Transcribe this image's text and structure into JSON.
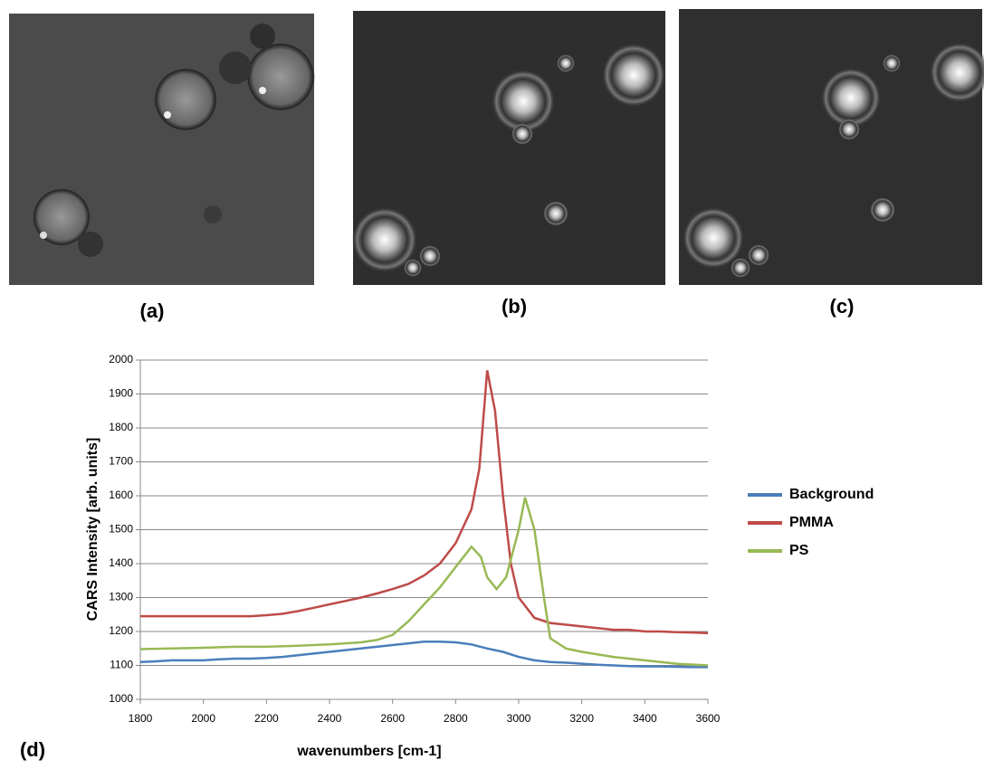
{
  "panels": {
    "a": "(a)",
    "b": "(b)",
    "c": "(c)",
    "d": "(d)"
  },
  "chart_data": {
    "type": "line",
    "ylabel": "CARS Intensity [arb. units]",
    "xlabel": "wavenumbers [cm-1]",
    "xlim": [
      1800,
      3600
    ],
    "xticks": [
      1800,
      2000,
      2200,
      2400,
      2600,
      2800,
      3000,
      3200,
      3400,
      3600
    ],
    "ylim": [
      1000,
      2000
    ],
    "yticks": [
      1000,
      1100,
      1200,
      1300,
      1400,
      1500,
      1600,
      1700,
      1800,
      1900,
      2000
    ],
    "grid": true,
    "legend": "right",
    "series": [
      {
        "name": "Background",
        "color": "#4a7ebb",
        "x": [
          1800,
          1850,
          1900,
          1950,
          2000,
          2050,
          2100,
          2150,
          2200,
          2250,
          2300,
          2350,
          2400,
          2450,
          2500,
          2550,
          2600,
          2650,
          2700,
          2750,
          2800,
          2850,
          2900,
          2950,
          3000,
          3050,
          3100,
          3150,
          3200,
          3250,
          3300,
          3350,
          3400,
          3450,
          3500,
          3550,
          3600
        ],
        "values": [
          1110,
          1112,
          1115,
          1115,
          1115,
          1118,
          1120,
          1120,
          1122,
          1125,
          1130,
          1135,
          1140,
          1145,
          1150,
          1155,
          1160,
          1165,
          1170,
          1170,
          1168,
          1162,
          1150,
          1140,
          1125,
          1115,
          1110,
          1108,
          1105,
          1102,
          1100,
          1098,
          1097,
          1097,
          1096,
          1095,
          1095
        ]
      },
      {
        "name": "PMMA",
        "color": "#be4b48",
        "x": [
          1800,
          1850,
          1900,
          1950,
          2000,
          2050,
          2100,
          2150,
          2200,
          2250,
          2300,
          2350,
          2400,
          2450,
          2500,
          2550,
          2600,
          2650,
          2700,
          2750,
          2800,
          2850,
          2875,
          2900,
          2925,
          2950,
          2975,
          3000,
          3050,
          3100,
          3150,
          3200,
          3250,
          3300,
          3350,
          3400,
          3450,
          3500,
          3550,
          3600
        ],
        "values": [
          1245,
          1245,
          1245,
          1245,
          1245,
          1245,
          1245,
          1245,
          1248,
          1252,
          1260,
          1270,
          1280,
          1290,
          1300,
          1312,
          1325,
          1340,
          1365,
          1400,
          1460,
          1560,
          1680,
          1970,
          1850,
          1600,
          1400,
          1300,
          1240,
          1225,
          1220,
          1215,
          1210,
          1205,
          1205,
          1200,
          1200,
          1198,
          1197,
          1195
        ]
      },
      {
        "name": "PS",
        "color": "#98b954",
        "x": [
          1800,
          1900,
          2000,
          2100,
          2200,
          2300,
          2400,
          2500,
          2550,
          2600,
          2650,
          2700,
          2750,
          2800,
          2850,
          2880,
          2900,
          2930,
          2960,
          3000,
          3020,
          3050,
          3080,
          3100,
          3150,
          3200,
          3300,
          3400,
          3500,
          3600
        ],
        "values": [
          1148,
          1150,
          1152,
          1155,
          1155,
          1158,
          1162,
          1168,
          1175,
          1190,
          1230,
          1280,
          1330,
          1390,
          1450,
          1420,
          1360,
          1325,
          1360,
          1500,
          1595,
          1500,
          1300,
          1180,
          1150,
          1140,
          1125,
          1115,
          1105,
          1100
        ]
      }
    ]
  }
}
